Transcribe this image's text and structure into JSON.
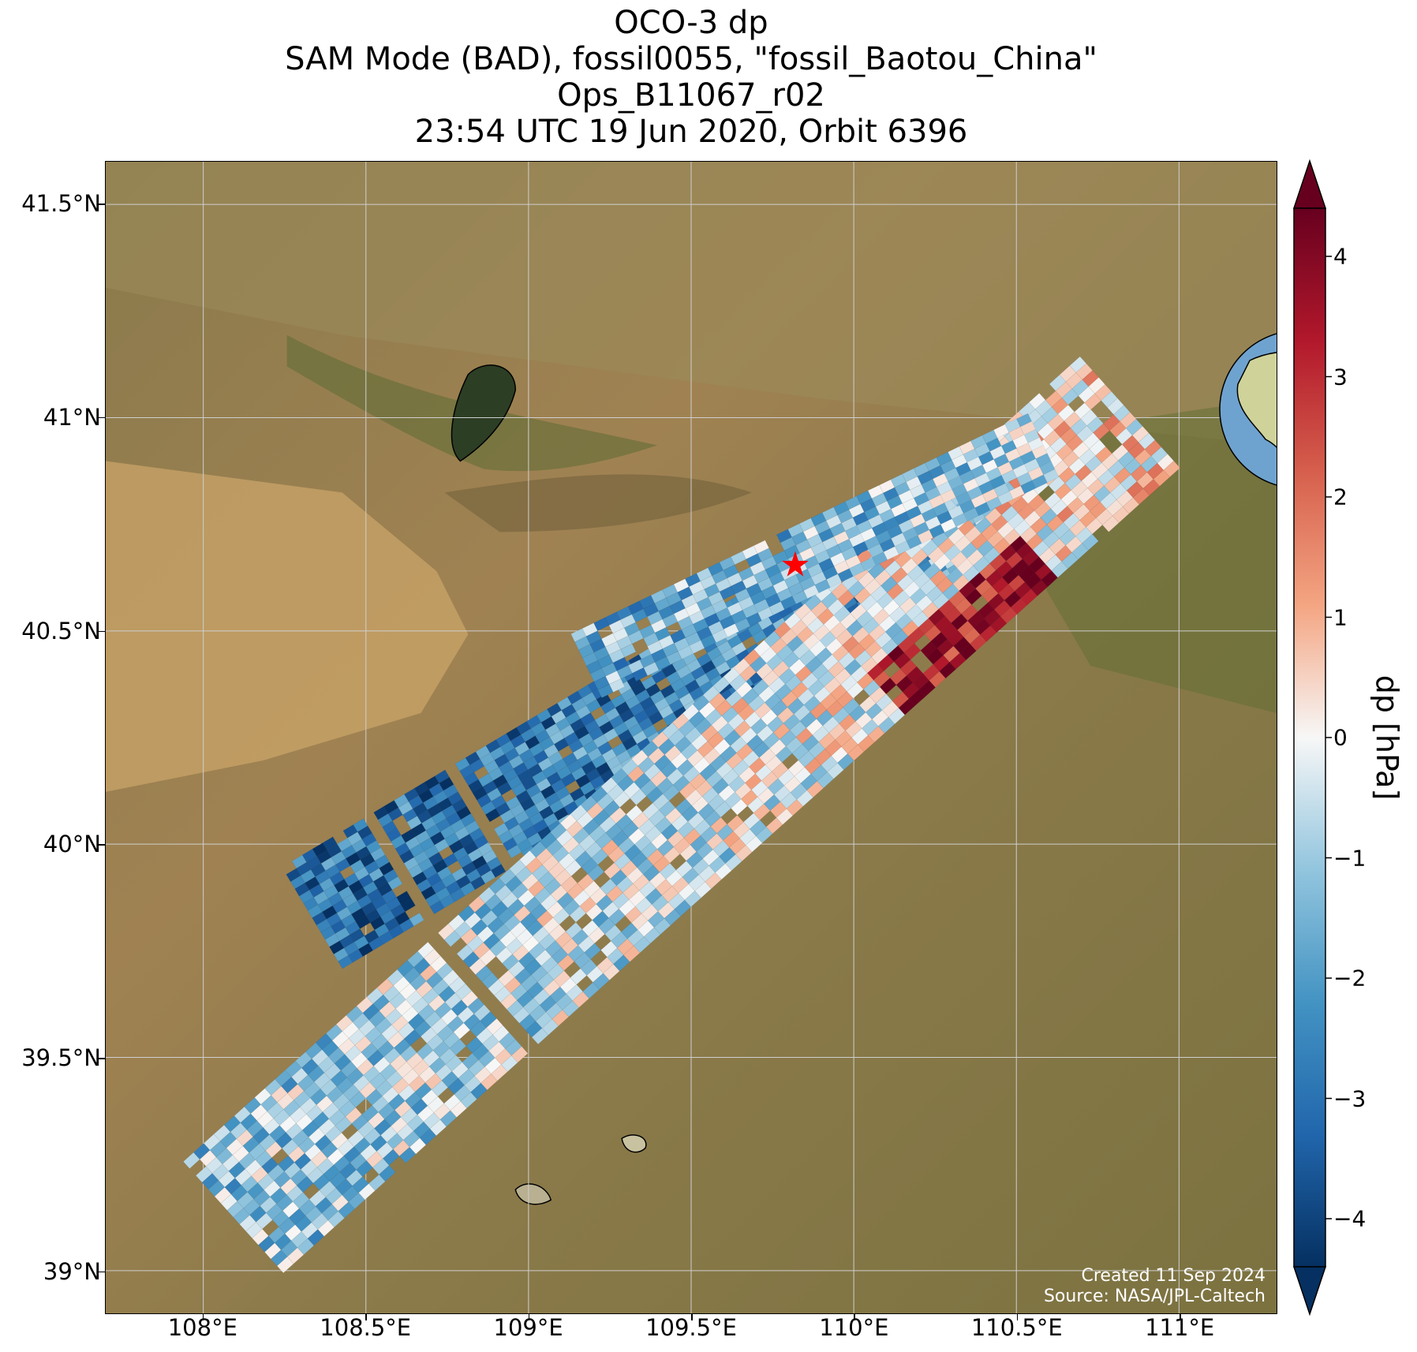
{
  "title": {
    "line1": "OCO-3 dp",
    "line2": "SAM Mode (BAD), fossil0055, \"fossil_Baotou_China\"",
    "line3": "Ops_B11067_r02",
    "line4": "23:54 UTC 19 Jun 2020, Orbit 6396"
  },
  "map": {
    "lon_range": [
      107.7,
      111.3
    ],
    "lat_range": [
      38.9,
      41.6
    ],
    "lon_ticks": [
      {
        "value": 108.0,
        "label": "108°E"
      },
      {
        "value": 108.5,
        "label": "108.5°E"
      },
      {
        "value": 109.0,
        "label": "109°E"
      },
      {
        "value": 109.5,
        "label": "109.5°E"
      },
      {
        "value": 110.0,
        "label": "110°E"
      },
      {
        "value": 110.5,
        "label": "110.5°E"
      },
      {
        "value": 111.0,
        "label": "111°E"
      }
    ],
    "lat_ticks": [
      {
        "value": 41.5,
        "label": "41.5°N"
      },
      {
        "value": 41.0,
        "label": "41°N"
      },
      {
        "value": 40.5,
        "label": "40.5°N"
      },
      {
        "value": 40.0,
        "label": "40°N"
      },
      {
        "value": 39.5,
        "label": "39.5°N"
      },
      {
        "value": 39.0,
        "label": "39°N"
      }
    ],
    "target_marker": {
      "lon": 109.82,
      "lat": 40.65,
      "color": "#ff0000",
      "icon": "red-star-icon"
    },
    "credits": {
      "created": "Created 11 Sep 2024",
      "source": "Source: NASA/JPL-Caltech"
    }
  },
  "colorbar": {
    "label": "dp [hPa]",
    "vmin": -4.4,
    "vmax": 4.4,
    "extend": "both",
    "colormap": "RdBu_r",
    "ticks": [
      {
        "value": 4,
        "label": "4"
      },
      {
        "value": 3,
        "label": "3"
      },
      {
        "value": 2,
        "label": "2"
      },
      {
        "value": 1,
        "label": "1"
      },
      {
        "value": 0,
        "label": "0"
      },
      {
        "value": -1,
        "label": "−1"
      },
      {
        "value": -2,
        "label": "−2"
      },
      {
        "value": -3,
        "label": "−3"
      },
      {
        "value": -4,
        "label": "−4"
      }
    ]
  },
  "colors": {
    "dark_blue": "#053061",
    "dark_red": "#67001f",
    "white": "#f7f7f7",
    "marker": "#ff0000"
  }
}
